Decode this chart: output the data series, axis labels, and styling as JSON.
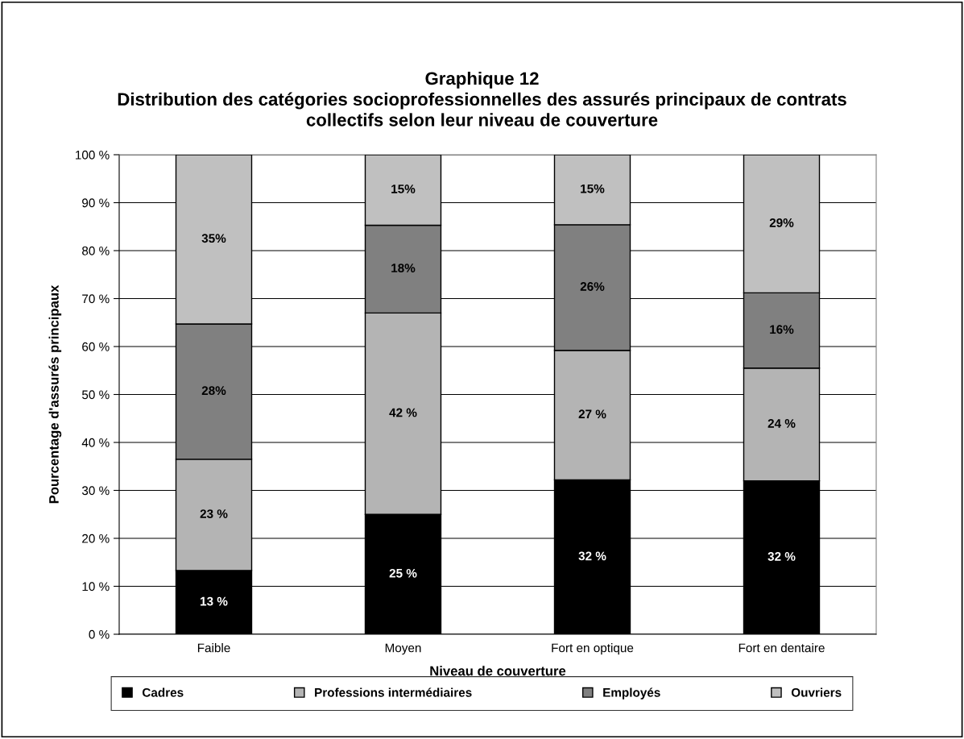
{
  "chart_data": {
    "type": "bar",
    "stacked": true,
    "title": "Graphique 12\nDistribution des catégories socioprofessionnelles des assurés principaux de contrats\ncollectifs selon leur niveau de couverture",
    "xlabel": "Niveau de couverture",
    "ylabel": "Pourcentage d'assurés principaux",
    "categories": [
      "Faible",
      "Moyen",
      "Fort en optique",
      "Fort en dentaire"
    ],
    "series": [
      {
        "name": "Cadres",
        "color": "#000000",
        "values": [
          13.3,
          25.0,
          32.2,
          32.0
        ],
        "value_labels": [
          "13 %",
          "25 %",
          "32 %",
          "32 %"
        ]
      },
      {
        "name": "Professions intermédiaires",
        "color": "#b4b4b4",
        "values": [
          23.2,
          42.0,
          27.0,
          23.5
        ],
        "value_labels": [
          "23 %",
          "42 %",
          "27 %",
          "24 %"
        ]
      },
      {
        "name": "Employés",
        "color": "#808080",
        "values": [
          28.2,
          18.3,
          26.2,
          15.7
        ],
        "value_labels": [
          "28%",
          "18%",
          "26%",
          "16%"
        ]
      },
      {
        "name": "Ouvriers",
        "color": "#c0c0c0",
        "values": [
          35.3,
          14.7,
          14.6,
          28.8
        ],
        "value_labels": [
          "35%",
          "15%",
          "15%",
          "29%"
        ]
      }
    ],
    "ylim": [
      0,
      100
    ],
    "yticks": [
      {
        "value": 0,
        "label": "0 %"
      },
      {
        "value": 10,
        "label": "10 %"
      },
      {
        "value": 20,
        "label": "20 %"
      },
      {
        "value": 30,
        "label": "30 %"
      },
      {
        "value": 40,
        "label": "40 %"
      },
      {
        "value": 50,
        "label": "50 %"
      },
      {
        "value": 60,
        "label": "60 %"
      },
      {
        "value": 70,
        "label": "70 %"
      },
      {
        "value": 80,
        "label": "80 %"
      },
      {
        "value": 90,
        "label": "90 %"
      },
      {
        "value": 100,
        "label": "100 %"
      }
    ],
    "grid": "y",
    "legend": "bottom"
  }
}
